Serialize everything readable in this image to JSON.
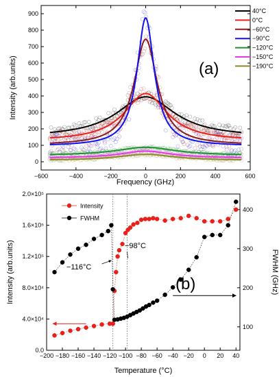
{
  "chart_data": [
    {
      "panel_label": "(a)",
      "type": "line",
      "xlabel": "Frequency (GHz)",
      "ylabel": "Intensity (arb.units)",
      "xlim": [
        -600,
        600
      ],
      "ylim": [
        -50,
        950
      ],
      "xticks": [
        -600,
        -400,
        -200,
        0,
        200,
        400,
        600
      ],
      "yticks": [
        0,
        100,
        200,
        300,
        400,
        500,
        600,
        700,
        800,
        900
      ],
      "legend_position": "top-right",
      "x_range": [
        -550,
        550
      ],
      "series": [
        {
          "name": "40°C",
          "color": "#000000",
          "peak": 395,
          "base": 148,
          "hwhm": 205
        },
        {
          "name": "0°C",
          "color": "#e8201a",
          "peak": 415,
          "base": 125,
          "hwhm": 150
        },
        {
          "name": "−60°C",
          "color": "#8b1a1a",
          "peak": 745,
          "base": 100,
          "hwhm": 80
        },
        {
          "name": "−90°C",
          "color": "#1010ee",
          "peak": 875,
          "base": 95,
          "hwhm": 60
        },
        {
          "name": "−120°C",
          "color": "#1f8f2f",
          "peak": 88,
          "base": 38,
          "hwhm": 210
        },
        {
          "name": "−150°C",
          "color": "#e03ae0",
          "peak": 65,
          "base": 22,
          "hwhm": 180
        },
        {
          "name": "−190°C",
          "color": "#8a8a2a",
          "peak": 45,
          "base": 8,
          "hwhm": 200
        }
      ]
    },
    {
      "panel_label": "(b)",
      "type": "scatter",
      "xlabel": "Temperature (°C)",
      "ylabel_left": "Intensity (arb.units)",
      "ylabel_right": "FWHM (GHz)",
      "xlim": [
        -200,
        45
      ],
      "xticks": [
        -200,
        -180,
        -160,
        -140,
        -120,
        -100,
        -80,
        -60,
        -40,
        -20,
        0,
        20,
        40
      ],
      "ylim_left": [
        0,
        200000
      ],
      "yticks_left": [
        {
          "v": 0,
          "label": "0.0"
        },
        {
          "v": 40000,
          "label": "4.0×10⁴"
        },
        {
          "v": 80000,
          "label": "8.0×10⁴"
        },
        {
          "v": 120000,
          "label": "1.2×10⁵"
        },
        {
          "v": 160000,
          "label": "1.6×10⁵"
        },
        {
          "v": 200000,
          "label": "2.0×10⁵"
        }
      ],
      "ylim_right": [
        40,
        440
      ],
      "yticks_right": [
        100,
        200,
        300,
        400
      ],
      "legend_position": "top-left",
      "annotations": [
        "−116°C",
        "−98°C"
      ],
      "vlines": [
        -116,
        -98
      ],
      "series": [
        {
          "name": "Intensity",
          "axis": "left",
          "color": "#e8201a",
          "x": [
            -190,
            -180,
            -170,
            -160,
            -150,
            -140,
            -130,
            -120,
            -116,
            -114,
            -112,
            -110,
            -108,
            -104,
            -100,
            -97,
            -94,
            -90,
            -85,
            -80,
            -75,
            -70,
            -65,
            -60,
            -50,
            -40,
            -30,
            -20,
            -10,
            0,
            10,
            20,
            30,
            40
          ],
          "y": [
            19000,
            22000,
            25000,
            27000,
            29000,
            31000,
            33000,
            34000,
            34000,
            76000,
            100000,
            120000,
            128000,
            136000,
            150000,
            154000,
            157000,
            161000,
            163000,
            167000,
            168000,
            168000,
            169000,
            168000,
            166000,
            168000,
            169000,
            172000,
            169000,
            165000,
            165000,
            165000,
            168000,
            180000
          ]
        },
        {
          "name": "FWHM",
          "axis": "right",
          "color": "#000000",
          "x": [
            -190,
            -180,
            -170,
            -160,
            -150,
            -140,
            -130,
            -122,
            -118,
            -116,
            -114,
            -110,
            -106,
            -102,
            -98,
            -94,
            -90,
            -86,
            -82,
            -78,
            -74,
            -70,
            -65,
            -60,
            -50,
            -40,
            -30,
            -20,
            -10,
            0,
            10,
            20,
            30,
            40
          ],
          "y": [
            240,
            265,
            285,
            300,
            310,
            325,
            335,
            345,
            360,
            196,
            118,
            119,
            121,
            123,
            126,
            130,
            134,
            138,
            142,
            147,
            152,
            156,
            162,
            167,
            182,
            201,
            221,
            246,
            278,
            330,
            335,
            335,
            360,
            420
          ]
        }
      ]
    }
  ]
}
